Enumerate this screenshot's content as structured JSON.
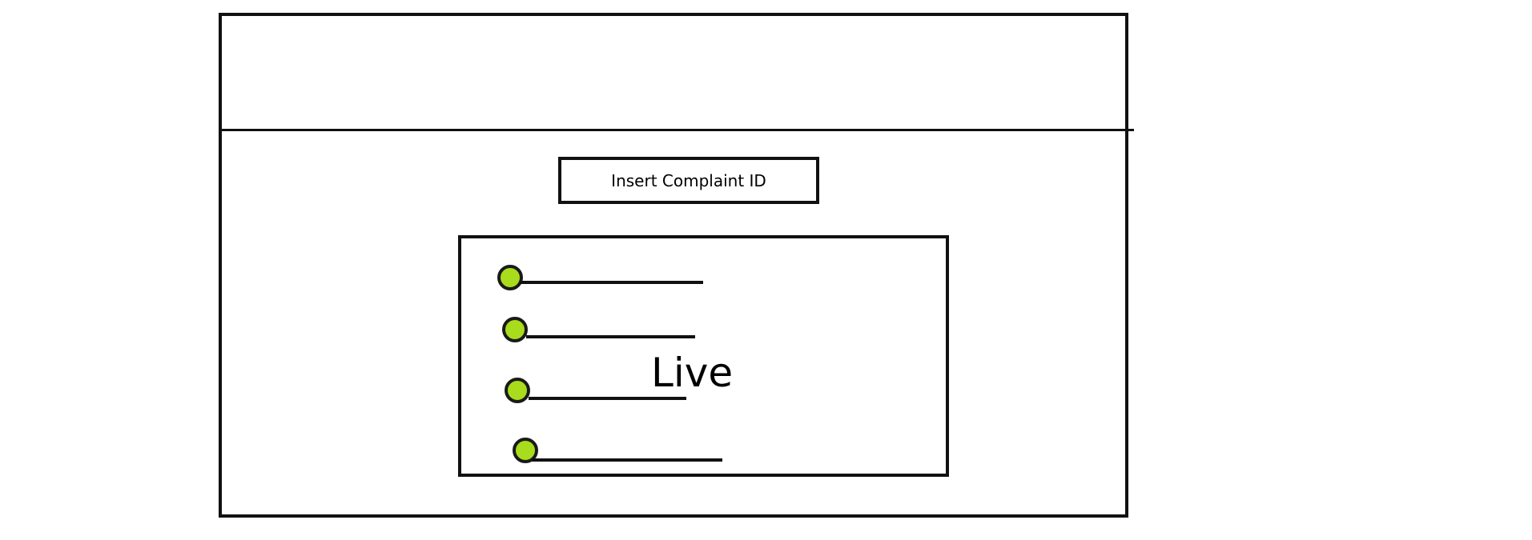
{
  "complaint_input": {
    "placeholder": "Insert Complaint ID"
  },
  "status": {
    "label": "Live"
  },
  "list": {
    "bullet_color": "#a8dc1c",
    "items": [
      {
        "id": "item-1"
      },
      {
        "id": "item-2"
      },
      {
        "id": "item-3"
      },
      {
        "id": "item-4"
      }
    ]
  }
}
